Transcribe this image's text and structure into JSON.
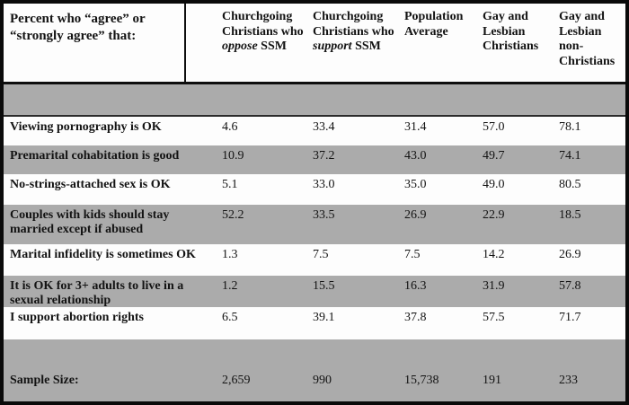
{
  "chart_data": {
    "type": "table",
    "title": "Percent who “agree” or “strongly agree” that:",
    "corner_header_line1": "Percent who “agree” or",
    "corner_header_line2": "“strongly agree” that:",
    "columns": [
      {
        "pre": "Churchgoing Christians who ",
        "em": "oppose",
        "post": " SSM"
      },
      {
        "pre": "Churchgoing Christians who ",
        "em": "support",
        "post": " SSM"
      },
      {
        "pre": "Population Average"
      },
      {
        "pre": "Gay and Lesbian Christians"
      },
      {
        "pre": "Gay and Lesbian non-Christians"
      }
    ],
    "rows": [
      {
        "label": "Viewing pornography is OK",
        "values": [
          "4.6",
          "33.4",
          "31.4",
          "57.0",
          "78.1"
        ]
      },
      {
        "label": "Premarital cohabitation is good",
        "values": [
          "10.9",
          "37.2",
          "43.0",
          "49.7",
          "74.1"
        ]
      },
      {
        "label": "No-strings-attached sex is OK",
        "values": [
          "5.1",
          "33.0",
          "35.0",
          "49.0",
          "80.5"
        ]
      },
      {
        "label": "Couples with kids should stay married except if abused",
        "values": [
          "52.2",
          "33.5",
          "26.9",
          "22.9",
          "18.5"
        ]
      },
      {
        "label": "Marital infidelity is sometimes OK",
        "values": [
          "1.3",
          "7.5",
          "7.5",
          "14.2",
          "26.9"
        ]
      },
      {
        "label": "It is OK for 3+ adults to live in a sexual relationship",
        "values": [
          "1.2",
          "15.5",
          "16.3",
          "31.9",
          "57.8"
        ]
      },
      {
        "label": "I support abortion rights",
        "values": [
          "6.5",
          "39.1",
          "37.8",
          "57.5",
          "71.7"
        ]
      }
    ],
    "footer_label": "Sample Size:",
    "footer_values": [
      "2,659",
      "990",
      "15,738",
      "191",
      "233"
    ],
    "layout": "alternating row shading white/gray; empty gray separator bands above first data row and above sample-size row",
    "colors": {
      "band_gray": "#ababab",
      "frame_black": "#0a0a0a",
      "row_white": "#fdfdfd"
    }
  }
}
